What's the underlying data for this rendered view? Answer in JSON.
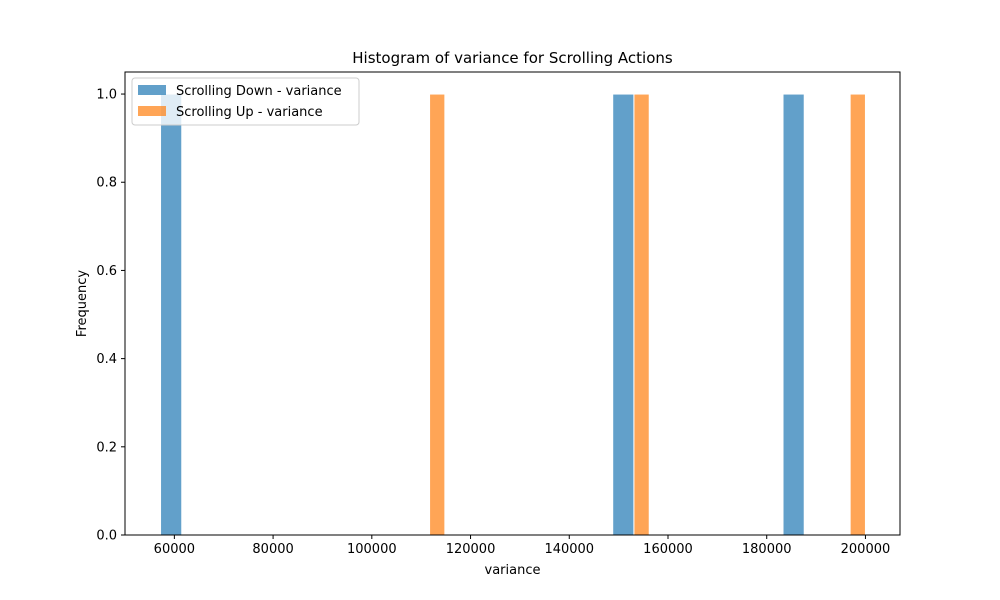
{
  "chart_data": {
    "type": "bar",
    "title": "Histogram of variance for Scrolling Actions",
    "xlabel": "variance",
    "ylabel": "Frequency",
    "xlim": [
      50000,
      207000
    ],
    "ylim": [
      0,
      1.05
    ],
    "xticks": [
      60000,
      80000,
      100000,
      120000,
      140000,
      160000,
      180000,
      200000
    ],
    "xtick_labels": [
      "60000",
      "80000",
      "100000",
      "120000",
      "140000",
      "160000",
      "180000",
      "200000"
    ],
    "yticks": [
      0.0,
      0.2,
      0.4,
      0.6,
      0.8,
      1.0
    ],
    "ytick_labels": [
      "0.0",
      "0.2",
      "0.4",
      "0.6",
      "0.8",
      "1.0"
    ],
    "grid": false,
    "legend_position": "top-left",
    "series": [
      {
        "name": "Scrolling Down - variance",
        "color": "#1f77b4",
        "bins": [
          {
            "x0": 57200,
            "x1": 61500,
            "count": 1
          },
          {
            "x0": 148800,
            "x1": 153100,
            "count": 1
          },
          {
            "x0": 183300,
            "x1": 187600,
            "count": 1
          }
        ]
      },
      {
        "name": "Scrolling Up - variance",
        "color": "#ff7f0e",
        "bins": [
          {
            "x0": 111700,
            "x1": 114800,
            "count": 1
          },
          {
            "x0": 153100,
            "x1": 156200,
            "count": 1
          },
          {
            "x0": 196900,
            "x1": 200000,
            "count": 1
          }
        ]
      }
    ]
  }
}
